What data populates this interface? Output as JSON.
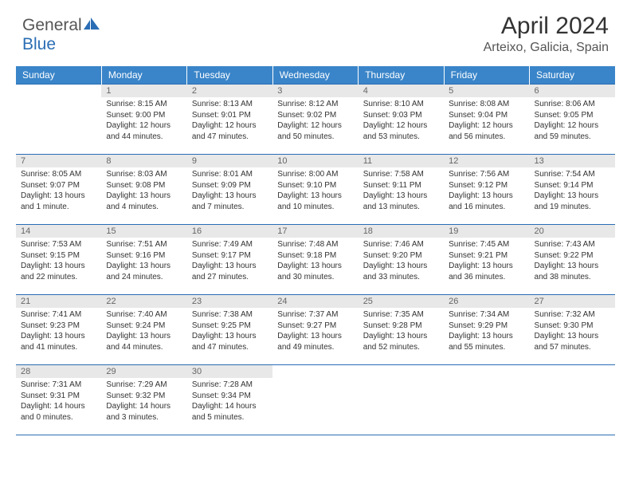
{
  "brand": {
    "part1": "General",
    "part2": "Blue"
  },
  "title": "April 2024",
  "location": "Arteixo, Galicia, Spain",
  "colors": {
    "header_bg": "#3a85c9",
    "border": "#2a6db5",
    "daynum_bg": "#e8e8e8",
    "text": "#333333",
    "muted": "#666666"
  },
  "weekdays": [
    "Sunday",
    "Monday",
    "Tuesday",
    "Wednesday",
    "Thursday",
    "Friday",
    "Saturday"
  ],
  "weeks": [
    [
      null,
      {
        "n": "1",
        "sr": "8:15 AM",
        "ss": "9:00 PM",
        "dl": "12 hours and 44 minutes."
      },
      {
        "n": "2",
        "sr": "8:13 AM",
        "ss": "9:01 PM",
        "dl": "12 hours and 47 minutes."
      },
      {
        "n": "3",
        "sr": "8:12 AM",
        "ss": "9:02 PM",
        "dl": "12 hours and 50 minutes."
      },
      {
        "n": "4",
        "sr": "8:10 AM",
        "ss": "9:03 PM",
        "dl": "12 hours and 53 minutes."
      },
      {
        "n": "5",
        "sr": "8:08 AM",
        "ss": "9:04 PM",
        "dl": "12 hours and 56 minutes."
      },
      {
        "n": "6",
        "sr": "8:06 AM",
        "ss": "9:05 PM",
        "dl": "12 hours and 59 minutes."
      }
    ],
    [
      {
        "n": "7",
        "sr": "8:05 AM",
        "ss": "9:07 PM",
        "dl": "13 hours and 1 minute."
      },
      {
        "n": "8",
        "sr": "8:03 AM",
        "ss": "9:08 PM",
        "dl": "13 hours and 4 minutes."
      },
      {
        "n": "9",
        "sr": "8:01 AM",
        "ss": "9:09 PM",
        "dl": "13 hours and 7 minutes."
      },
      {
        "n": "10",
        "sr": "8:00 AM",
        "ss": "9:10 PM",
        "dl": "13 hours and 10 minutes."
      },
      {
        "n": "11",
        "sr": "7:58 AM",
        "ss": "9:11 PM",
        "dl": "13 hours and 13 minutes."
      },
      {
        "n": "12",
        "sr": "7:56 AM",
        "ss": "9:12 PM",
        "dl": "13 hours and 16 minutes."
      },
      {
        "n": "13",
        "sr": "7:54 AM",
        "ss": "9:14 PM",
        "dl": "13 hours and 19 minutes."
      }
    ],
    [
      {
        "n": "14",
        "sr": "7:53 AM",
        "ss": "9:15 PM",
        "dl": "13 hours and 22 minutes."
      },
      {
        "n": "15",
        "sr": "7:51 AM",
        "ss": "9:16 PM",
        "dl": "13 hours and 24 minutes."
      },
      {
        "n": "16",
        "sr": "7:49 AM",
        "ss": "9:17 PM",
        "dl": "13 hours and 27 minutes."
      },
      {
        "n": "17",
        "sr": "7:48 AM",
        "ss": "9:18 PM",
        "dl": "13 hours and 30 minutes."
      },
      {
        "n": "18",
        "sr": "7:46 AM",
        "ss": "9:20 PM",
        "dl": "13 hours and 33 minutes."
      },
      {
        "n": "19",
        "sr": "7:45 AM",
        "ss": "9:21 PM",
        "dl": "13 hours and 36 minutes."
      },
      {
        "n": "20",
        "sr": "7:43 AM",
        "ss": "9:22 PM",
        "dl": "13 hours and 38 minutes."
      }
    ],
    [
      {
        "n": "21",
        "sr": "7:41 AM",
        "ss": "9:23 PM",
        "dl": "13 hours and 41 minutes."
      },
      {
        "n": "22",
        "sr": "7:40 AM",
        "ss": "9:24 PM",
        "dl": "13 hours and 44 minutes."
      },
      {
        "n": "23",
        "sr": "7:38 AM",
        "ss": "9:25 PM",
        "dl": "13 hours and 47 minutes."
      },
      {
        "n": "24",
        "sr": "7:37 AM",
        "ss": "9:27 PM",
        "dl": "13 hours and 49 minutes."
      },
      {
        "n": "25",
        "sr": "7:35 AM",
        "ss": "9:28 PM",
        "dl": "13 hours and 52 minutes."
      },
      {
        "n": "26",
        "sr": "7:34 AM",
        "ss": "9:29 PM",
        "dl": "13 hours and 55 minutes."
      },
      {
        "n": "27",
        "sr": "7:32 AM",
        "ss": "9:30 PM",
        "dl": "13 hours and 57 minutes."
      }
    ],
    [
      {
        "n": "28",
        "sr": "7:31 AM",
        "ss": "9:31 PM",
        "dl": "14 hours and 0 minutes."
      },
      {
        "n": "29",
        "sr": "7:29 AM",
        "ss": "9:32 PM",
        "dl": "14 hours and 3 minutes."
      },
      {
        "n": "30",
        "sr": "7:28 AM",
        "ss": "9:34 PM",
        "dl": "14 hours and 5 minutes."
      },
      null,
      null,
      null,
      null
    ]
  ],
  "labels": {
    "sunrise": "Sunrise:",
    "sunset": "Sunset:",
    "daylight": "Daylight:"
  }
}
